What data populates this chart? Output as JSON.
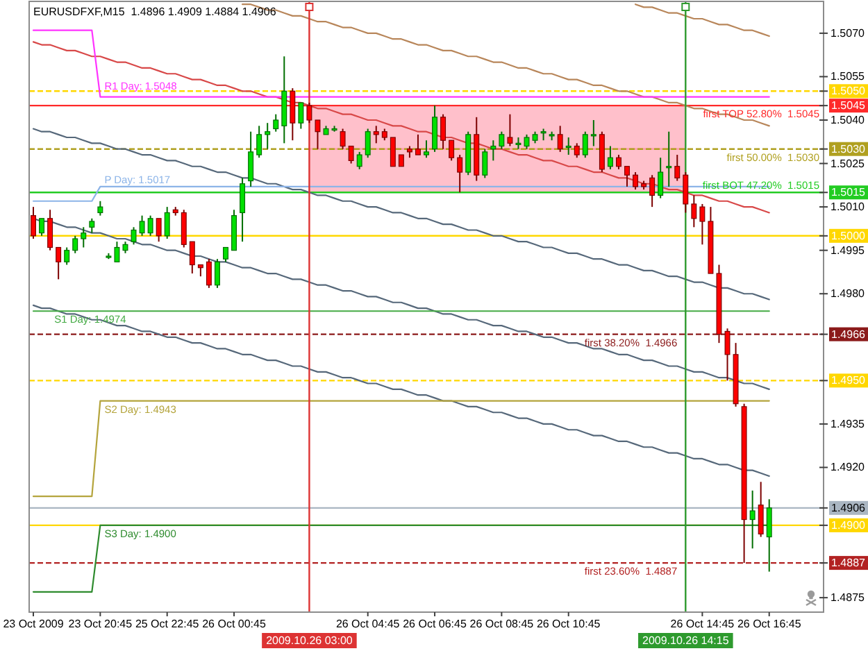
{
  "chart_data": {
    "type": "candlestick",
    "title": "EURUSDFXF,M15  1.4896 1.4909 1.4884 1.4906",
    "categories": [
      "23 Oct 2009",
      null,
      null,
      null,
      null,
      null,
      null,
      null,
      "23 Oct 20:45",
      null,
      null,
      null,
      null,
      null,
      null,
      null,
      "25 Oct 22:45",
      null,
      null,
      null,
      null,
      null,
      null,
      null,
      "26 Oct 00:45",
      null,
      null,
      null,
      null,
      null,
      null,
      null,
      null,
      "2009.10.26 03:00",
      null,
      null,
      null,
      null,
      null,
      null,
      "26 Oct 04:45",
      null,
      null,
      null,
      null,
      null,
      null,
      null,
      "26 Oct 06:45",
      null,
      null,
      null,
      null,
      null,
      null,
      null,
      "26 Oct 08:45",
      null,
      null,
      null,
      null,
      null,
      null,
      null,
      "26 Oct 10:45",
      null,
      null,
      null,
      null,
      null,
      null,
      null,
      null,
      null,
      null,
      null,
      null,
      null,
      "2009.10.26 14:15",
      null,
      "26 Oct 14:45",
      null,
      null,
      null,
      null,
      null,
      null,
      null,
      "26 Oct 16:45"
    ],
    "ohlc": [
      [
        1.5007,
        1.501,
        1.4999,
        1.5
      ],
      [
        1.5001,
        1.5006,
        1.5,
        1.5006
      ],
      [
        1.5006,
        1.5009,
        1.4995,
        1.4996
      ],
      [
        1.4996,
        1.4996,
        1.4985,
        1.4991
      ],
      [
        1.4991,
        1.4996,
        1.499,
        1.4995
      ],
      [
        1.4995,
        1.5,
        1.4994,
        1.4999
      ],
      [
        1.4999,
        1.5003,
        1.4996,
        1.5001
      ],
      [
        1.5003,
        1.5006,
        1.5001,
        1.5005
      ],
      [
        1.5008,
        1.5012,
        1.5007,
        1.501
      ],
      [
        1.4993,
        1.4994,
        1.4992,
        1.4993
      ],
      [
        1.4991,
        1.4998,
        1.4991,
        1.4996
      ],
      [
        1.4995,
        1.4998,
        1.4994,
        1.4997
      ],
      [
        1.4998,
        1.5003,
        1.4997,
        1.5002
      ],
      [
        1.5001,
        1.5007,
        1.5,
        1.5005
      ],
      [
        1.5001,
        1.5007,
        1.5,
        1.5006
      ],
      [
        1.5006,
        1.5006,
        1.4998,
        1.5
      ],
      [
        1.5,
        1.501,
        1.4999,
        1.5008
      ],
      [
        1.5009,
        1.501,
        1.5007,
        1.5008
      ],
      [
        1.5008,
        1.5009,
        1.4996,
        1.4997
      ],
      [
        1.4998,
        1.4998,
        1.4987,
        1.499
      ],
      [
        1.499,
        1.499,
        1.4986,
        1.4989
      ],
      [
        1.4991,
        1.4992,
        1.4982,
        1.4983
      ],
      [
        1.4983,
        1.4992,
        1.4982,
        1.4991
      ],
      [
        1.4992,
        1.4996,
        1.4991,
        1.4996
      ],
      [
        1.4995,
        1.5009,
        1.4995,
        1.5007
      ],
      [
        1.5008,
        1.502,
        1.4998,
        1.5018
      ],
      [
        1.5019,
        1.5036,
        1.5017,
        1.5029
      ],
      [
        1.5028,
        1.5038,
        1.5027,
        1.5035
      ],
      [
        1.5035,
        1.5039,
        1.503,
        1.5036
      ],
      [
        1.5037,
        1.5042,
        1.5036,
        1.504
      ],
      [
        1.5038,
        1.5062,
        1.5032,
        1.505
      ],
      [
        1.505,
        1.5051,
        1.5033,
        1.5039
      ],
      [
        1.5039,
        1.5046,
        1.5037,
        1.5046
      ],
      [
        1.5045,
        1.5046,
        1.5039,
        1.504
      ],
      [
        1.504,
        1.504,
        1.503,
        1.5036
      ],
      [
        1.5035,
        1.5038,
        1.5035,
        1.5037
      ],
      [
        1.5037,
        1.5038,
        1.5036,
        1.5037
      ],
      [
        1.5036,
        1.5037,
        1.503,
        1.5031
      ],
      [
        1.5031,
        1.5031,
        1.5025,
        1.5026
      ],
      [
        1.5024,
        1.5029,
        1.5023,
        1.5028
      ],
      [
        1.5028,
        1.5037,
        1.5027,
        1.5036
      ],
      [
        1.5036,
        1.5038,
        1.5032,
        1.5035
      ],
      [
        1.5036,
        1.5037,
        1.5033,
        1.5034
      ],
      [
        1.5034,
        1.5034,
        1.5024,
        1.5024
      ],
      [
        1.5028,
        1.5028,
        1.5024,
        1.5024
      ],
      [
        1.503,
        1.5031,
        1.5027,
        1.5029
      ],
      [
        1.503,
        1.5035,
        1.5028,
        1.5028
      ],
      [
        1.5028,
        1.5033,
        1.5027,
        1.5029
      ],
      [
        1.503,
        1.5045,
        1.5029,
        1.5041
      ],
      [
        1.5041,
        1.5042,
        1.503,
        1.5033
      ],
      [
        1.5033,
        1.5033,
        1.5026,
        1.5027
      ],
      [
        1.5027,
        1.5028,
        1.5015,
        1.5022
      ],
      [
        1.5022,
        1.5036,
        1.5021,
        1.5035
      ],
      [
        1.5035,
        1.5041,
        1.5019,
        1.5021
      ],
      [
        1.5021,
        1.503,
        1.502,
        1.5029
      ],
      [
        1.503,
        1.5033,
        1.5026,
        1.5031
      ],
      [
        1.5031,
        1.5036,
        1.503,
        1.5035
      ],
      [
        1.5034,
        1.5042,
        1.5031,
        1.5032
      ],
      [
        1.5032,
        1.5034,
        1.503,
        1.5032
      ],
      [
        1.5031,
        1.5035,
        1.503,
        1.5034
      ],
      [
        1.5033,
        1.5036,
        1.5032,
        1.5035
      ],
      [
        1.5036,
        1.5037,
        1.5033,
        1.5036
      ],
      [
        1.5035,
        1.5036,
        1.5033,
        1.5035
      ],
      [
        1.5035,
        1.5038,
        1.5029,
        1.503
      ],
      [
        1.5031,
        1.5034,
        1.5028,
        1.5031
      ],
      [
        1.5031,
        1.5032,
        1.5027,
        1.5028
      ],
      [
        1.5028,
        1.5036,
        1.5027,
        1.5035
      ],
      [
        1.5035,
        1.504,
        1.5031,
        1.5035
      ],
      [
        1.5035,
        1.5036,
        1.5022,
        1.5023
      ],
      [
        1.5024,
        1.5031,
        1.5023,
        1.5027
      ],
      [
        1.5027,
        1.5028,
        1.5023,
        1.5024
      ],
      [
        1.5024,
        1.5024,
        1.5017,
        1.5021
      ],
      [
        1.5021,
        1.5022,
        1.5016,
        1.5017
      ],
      [
        1.5018,
        1.5019,
        1.5016,
        1.5017
      ],
      [
        1.502,
        1.5021,
        1.501,
        1.5014
      ],
      [
        1.5014,
        1.5027,
        1.5013,
        1.5022
      ],
      [
        1.5024,
        1.5036,
        1.5017,
        1.5024
      ],
      [
        1.5024,
        1.5028,
        1.5019,
        1.502
      ],
      [
        1.5021,
        1.5022,
        1.5008,
        1.5011
      ],
      [
        1.5011,
        1.5014,
        1.5003,
        1.5006
      ],
      [
        1.501,
        1.5011,
        1.4997,
        1.5005
      ],
      [
        1.5005,
        1.501,
        1.4987,
        1.4987
      ],
      [
        1.4987,
        1.499,
        1.4963,
        1.4966
      ],
      [
        1.4967,
        1.4968,
        1.495,
        1.4959
      ],
      [
        1.4959,
        1.4963,
        1.4941,
        1.4942
      ],
      [
        1.4941,
        1.4942,
        1.4887,
        1.4902
      ],
      [
        1.4902,
        1.4912,
        1.4892,
        1.4905
      ],
      [
        1.4907,
        1.4915,
        1.4896,
        1.4897
      ],
      [
        1.4896,
        1.4909,
        1.4884,
        1.4906
      ]
    ],
    "colors": [
      "#ff0000",
      "#00e000",
      "#ff0000",
      "#ff0000",
      "#00e000",
      "#00e000",
      "#00e000",
      "#00e000",
      "#00e000",
      "#00e000",
      "#00e000",
      "#00e000",
      "#00e000",
      "#00e000",
      "#00e000",
      "#ff0000",
      "#00e000",
      "#ff0000",
      "#ff0000",
      "#ff0000",
      "#ff0000",
      "#ff0000",
      "#00e000",
      "#00e000",
      "#00e000",
      "#00e000",
      "#00e000",
      "#00e000",
      "#00e000",
      "#00e000",
      "#00e000",
      "#ff0000",
      "#00e000",
      "#ff0000",
      "#ff0000",
      "#00e000",
      "#00e000",
      "#ff0000",
      "#ff0000",
      "#00e000",
      "#00e000",
      "#ff0000",
      "#ff0000",
      "#ff0000",
      "#ff0000",
      "#ff0000",
      "#ff0000",
      "#00e000",
      "#00e000",
      "#ff0000",
      "#ff0000",
      "#ff0000",
      "#00e000",
      "#ff0000",
      "#00e000",
      "#00e000",
      "#00e000",
      "#ff0000",
      "#00e000",
      "#00e000",
      "#00e000",
      "#00e000",
      "#00e000",
      "#ff0000",
      "#00e000",
      "#ff0000",
      "#00e000",
      "#00e000",
      "#ff0000",
      "#00e000",
      "#ff0000",
      "#ff0000",
      "#ff0000",
      "#ff0000",
      "#ff0000",
      "#00e000",
      "#00e000",
      "#ff0000",
      "#ff0000",
      "#ff0000",
      "#ff0000",
      "#ff0000",
      "#ff0000",
      "#ff0000",
      "#ff0000",
      "#ff0000",
      "#00e000",
      "#ff0000",
      "#00e000"
    ],
    "ylim": [
      1.487,
      1.5081
    ],
    "yticks": [
      {
        "value": 1.507,
        "label": "1.5070"
      },
      1.5055,
      {
        "value": 1.505,
        "label": "1.5050"
      },
      1.5045,
      {
        "value": 1.504,
        "label": "1.5040"
      },
      {
        "value": 1.503,
        "label": "1.5030"
      },
      1.5025,
      1.5015,
      {
        "value": 1.501,
        "label": "1.5010"
      },
      {
        "value": 1.5,
        "label": "1.5000"
      },
      1.4995,
      {
        "value": 1.498,
        "label": "1.4980"
      },
      1.4966,
      {
        "value": 1.495,
        "label": "1.4950"
      },
      1.4935,
      {
        "value": 1.492,
        "label": "1.4920"
      },
      1.4906,
      {
        "value": 1.49,
        "label": "1.4900"
      },
      1.4887,
      1.4875
    ],
    "series": [
      {
        "type": "line",
        "color": "#ff96a8",
        "values": [
          null,
          null,
          null,
          null,
          null,
          null,
          null,
          null,
          null,
          null,
          null,
          null,
          null,
          null,
          null,
          null,
          null,
          null,
          null,
          null,
          null,
          null,
          null,
          null,
          null,
          null,
          null,
          null,
          null,
          null,
          null,
          null,
          null,
          1.503,
          1.503,
          1.503,
          1.503,
          1.503,
          1.503,
          1.503,
          1.503,
          1.503,
          1.503,
          1.503,
          1.503,
          1.503,
          1.503,
          1.503,
          1.503,
          1.503,
          1.503,
          1.503,
          1.503,
          1.503,
          1.503,
          1.503,
          1.503,
          1.503,
          1.503,
          1.503,
          1.503,
          1.503,
          1.503,
          1.503,
          1.503,
          1.503,
          1.503,
          1.503,
          1.503,
          1.503,
          1.503,
          1.503,
          1.503,
          1.503,
          1.503,
          1.503,
          1.503,
          1.503,
          1.503,
          null,
          null,
          null,
          null,
          null,
          null,
          null,
          null,
          null,
          null
        ],
        "upper": [
          null,
          null,
          null,
          null,
          null,
          null,
          null,
          null,
          null,
          null,
          null,
          null,
          null,
          null,
          null,
          null,
          null,
          null,
          null,
          null,
          null,
          null,
          null,
          null,
          null,
          null,
          null,
          null,
          null,
          null,
          null,
          null,
          null,
          1.5045,
          1.5045,
          1.5045,
          1.5045,
          1.5045,
          1.5045,
          1.5045,
          1.5045,
          1.5045,
          1.5045,
          1.5045,
          1.5045,
          1.5045,
          1.5045,
          1.5045,
          1.5045,
          1.5045,
          1.5045,
          1.5045,
          1.5045,
          1.5045,
          1.5045,
          1.5045,
          1.5045,
          1.5045,
          1.5045,
          1.5045,
          1.5045,
          1.5045,
          1.5045,
          1.5045,
          1.5045,
          1.5045,
          1.5045,
          1.5045,
          1.5045,
          1.5045,
          1.5045,
          1.5045,
          1.5045,
          1.5045,
          1.5045,
          1.5045,
          1.5045,
          1.5045,
          1.5045,
          null,
          null,
          null,
          null,
          null,
          null,
          null,
          null,
          null,
          null
        ],
        "lower": [
          null,
          null,
          null,
          null,
          null,
          null,
          null,
          null,
          null,
          null,
          null,
          null,
          null,
          null,
          null,
          null,
          null,
          null,
          null,
          null,
          null,
          null,
          null,
          null,
          null,
          null,
          null,
          null,
          null,
          null,
          null,
          null,
          null,
          1.5015,
          1.5015,
          1.5015,
          1.5015,
          1.5015,
          1.5015,
          1.5015,
          1.5015,
          1.5015,
          1.5015,
          1.5015,
          1.5015,
          1.5015,
          1.5015,
          1.5015,
          1.5015,
          1.5015,
          1.5015,
          1.5015,
          1.5015,
          1.5015,
          1.5015,
          1.5015,
          1.5015,
          1.5015,
          1.5015,
          1.5015,
          1.5015,
          1.5015,
          1.5015,
          1.5015,
          1.5015,
          1.5015,
          1.5015,
          1.5015,
          1.5015,
          1.5015,
          1.5015,
          1.5015,
          1.5015,
          1.5015,
          1.5015,
          1.5015,
          1.5015,
          1.5015,
          1.5015,
          null,
          null,
          null,
          null,
          null,
          null,
          null,
          null,
          null,
          null
        ]
      },
      {
        "type": "line",
        "color": "#b8865a",
        "values": [
          null,
          null,
          null,
          null,
          null,
          null,
          null,
          null,
          null,
          null,
          null,
          null,
          null,
          null,
          null,
          null,
          null,
          null,
          null,
          null,
          null,
          null,
          null,
          null,
          null,
          1.508,
          1.508,
          1.5079,
          1.5078,
          1.5078,
          1.5077,
          1.5076,
          1.5076,
          1.5075,
          1.5074,
          1.5074,
          1.5073,
          1.5072,
          1.5072,
          1.5071,
          1.507,
          1.507,
          1.5069,
          1.5068,
          1.5068,
          1.5067,
          1.5066,
          1.5066,
          1.5065,
          1.5064,
          1.5064,
          1.5063,
          1.5062,
          1.5062,
          1.5061,
          1.506,
          1.506,
          1.5059,
          1.5058,
          1.5058,
          1.5057,
          1.5056,
          1.5056,
          1.5055,
          1.5054,
          1.5054,
          1.5053,
          1.5052,
          1.5052,
          1.5051,
          1.505,
          1.505,
          1.5049,
          1.5048,
          1.5048,
          1.5047,
          1.5046,
          1.5046,
          1.5045,
          1.5044,
          1.5044,
          1.5043,
          1.5042,
          1.5042,
          1.5041,
          1.504,
          1.504,
          1.5039,
          1.5038
        ]
      },
      {
        "type": "line",
        "color": "#b8865a",
        "values": [
          null,
          null,
          null,
          null,
          null,
          null,
          null,
          null,
          null,
          null,
          null,
          null,
          null,
          null,
          null,
          null,
          null,
          null,
          null,
          null,
          null,
          null,
          null,
          null,
          null,
          null,
          null,
          null,
          null,
          null,
          null,
          null,
          null,
          null,
          null,
          null,
          null,
          null,
          null,
          null,
          null,
          null,
          null,
          null,
          null,
          null,
          null,
          null,
          null,
          null,
          null,
          null,
          null,
          null,
          null,
          null,
          null,
          null,
          null,
          null,
          null,
          null,
          null,
          null,
          null,
          null,
          null,
          null,
          null,
          null,
          null,
          null,
          1.508,
          1.5079,
          1.5079,
          1.5078,
          1.5077,
          1.5077,
          1.5076,
          1.5075,
          1.5075,
          1.5074,
          1.5073,
          1.5073,
          1.5072,
          1.5071,
          1.5071,
          1.507,
          1.5069
        ]
      },
      {
        "type": "line",
        "color": "#d84848",
        "values": [
          1.5067,
          1.5066,
          1.5066,
          1.5065,
          1.5064,
          1.5064,
          1.5063,
          1.5062,
          1.5062,
          1.5061,
          1.506,
          1.506,
          1.5059,
          1.5058,
          1.5058,
          1.5057,
          1.5056,
          1.5056,
          1.5055,
          1.5054,
          1.5054,
          1.5053,
          1.5052,
          1.5052,
          1.5051,
          1.505,
          1.505,
          1.5049,
          1.5048,
          1.5048,
          1.5047,
          1.5046,
          1.5046,
          1.5045,
          1.5044,
          1.5044,
          1.5043,
          1.5042,
          1.5042,
          1.5041,
          1.504,
          1.504,
          1.5039,
          1.5038,
          1.5038,
          1.5037,
          1.5036,
          1.5036,
          1.5035,
          1.5034,
          1.5034,
          1.5033,
          1.5032,
          1.5032,
          1.5031,
          1.503,
          1.503,
          1.5029,
          1.5028,
          1.5028,
          1.5027,
          1.5026,
          1.5026,
          1.5025,
          1.5024,
          1.5024,
          1.5023,
          1.5022,
          1.5022,
          1.5021,
          1.502,
          1.502,
          1.5019,
          1.5018,
          1.5018,
          1.5017,
          1.5016,
          1.5016,
          1.5015,
          1.5014,
          1.5014,
          1.5013,
          1.5012,
          1.5012,
          1.5011,
          1.501,
          1.501,
          1.5009,
          1.5008
        ]
      },
      {
        "type": "line",
        "color": "#56687a",
        "values": [
          1.5037,
          1.5036,
          1.5036,
          1.5035,
          1.5034,
          1.5034,
          1.5033,
          1.5032,
          1.5032,
          1.5031,
          1.503,
          1.503,
          1.5029,
          1.5028,
          1.5028,
          1.5027,
          1.5026,
          1.5026,
          1.5025,
          1.5024,
          1.5024,
          1.5023,
          1.5022,
          1.5022,
          1.5021,
          1.502,
          1.502,
          1.5019,
          1.5018,
          1.5018,
          1.5017,
          1.5016,
          1.5016,
          1.5015,
          1.5014,
          1.5014,
          1.5013,
          1.5012,
          1.5012,
          1.5011,
          1.501,
          1.501,
          1.5009,
          1.5008,
          1.5008,
          1.5007,
          1.5006,
          1.5006,
          1.5005,
          1.5004,
          1.5004,
          1.5003,
          1.5002,
          1.5002,
          1.5001,
          1.5,
          1.5,
          1.4999,
          1.4998,
          1.4998,
          1.4997,
          1.4996,
          1.4996,
          1.4995,
          1.4994,
          1.4994,
          1.4993,
          1.4992,
          1.4992,
          1.4991,
          1.499,
          1.499,
          1.4989,
          1.4988,
          1.4988,
          1.4987,
          1.4986,
          1.4986,
          1.4985,
          1.4984,
          1.4984,
          1.4983,
          1.4982,
          1.4982,
          1.4981,
          1.498,
          1.498,
          1.4979,
          1.4978
        ]
      },
      {
        "type": "line",
        "color": "#56687a",
        "values": [
          1.5006,
          1.5005,
          1.5005,
          1.5004,
          1.5003,
          1.5003,
          1.5002,
          1.5001,
          1.5001,
          1.5,
          1.4999,
          1.4999,
          1.4998,
          1.4997,
          1.4997,
          1.4996,
          1.4995,
          1.4995,
          1.4994,
          1.4993,
          1.4993,
          1.4992,
          1.4991,
          1.4991,
          1.499,
          1.4989,
          1.4989,
          1.4988,
          1.4987,
          1.4987,
          1.4986,
          1.4985,
          1.4985,
          1.4984,
          1.4983,
          1.4983,
          1.4982,
          1.4981,
          1.4981,
          1.498,
          1.4979,
          1.4979,
          1.4978,
          1.4977,
          1.4977,
          1.4976,
          1.4975,
          1.4975,
          1.4974,
          1.4973,
          1.4973,
          1.4972,
          1.4971,
          1.4971,
          1.497,
          1.4969,
          1.4969,
          1.4968,
          1.4967,
          1.4967,
          1.4966,
          1.4965,
          1.4965,
          1.4964,
          1.4963,
          1.4963,
          1.4962,
          1.4961,
          1.4961,
          1.496,
          1.4959,
          1.4959,
          1.4958,
          1.4957,
          1.4957,
          1.4956,
          1.4955,
          1.4955,
          1.4954,
          1.4953,
          1.4953,
          1.4952,
          1.4951,
          1.4951,
          1.495,
          1.4949,
          1.4949,
          1.4948,
          1.4947
        ]
      },
      {
        "type": "line",
        "color": "#56687a",
        "values": [
          1.4976,
          1.4975,
          1.4975,
          1.4974,
          1.4973,
          1.4973,
          1.4972,
          1.4971,
          1.4971,
          1.497,
          1.4969,
          1.4969,
          1.4968,
          1.4967,
          1.4967,
          1.4966,
          1.4965,
          1.4965,
          1.4964,
          1.4963,
          1.4963,
          1.4962,
          1.4961,
          1.4961,
          1.496,
          1.4959,
          1.4959,
          1.4958,
          1.4957,
          1.4957,
          1.4956,
          1.4955,
          1.4955,
          1.4954,
          1.4953,
          1.4953,
          1.4952,
          1.4951,
          1.4951,
          1.495,
          1.4949,
          1.4949,
          1.4948,
          1.4947,
          1.4947,
          1.4946,
          1.4945,
          1.4945,
          1.4944,
          1.4943,
          1.4943,
          1.4942,
          1.4941,
          1.4941,
          1.494,
          1.4939,
          1.4939,
          1.4938,
          1.4937,
          1.4937,
          1.4936,
          1.4935,
          1.4935,
          1.4934,
          1.4933,
          1.4933,
          1.4932,
          1.4931,
          1.4931,
          1.493,
          1.4929,
          1.4929,
          1.4928,
          1.4927,
          1.4927,
          1.4926,
          1.4925,
          1.4925,
          1.4924,
          1.4923,
          1.4923,
          1.4922,
          1.4921,
          1.4921,
          1.492,
          1.4919,
          1.4919,
          1.4918,
          1.4917
        ]
      },
      {
        "type": "line",
        "name": "R1 Day: 1.5048",
        "color": "#ff33ff",
        "values": [
          1.5071,
          1.5071,
          1.5071,
          1.5071,
          1.5071,
          1.5071,
          1.5071,
          1.5071,
          1.5048,
          1.5048,
          1.5048,
          1.5048,
          1.5048,
          1.5048,
          1.5048,
          1.5048,
          1.5048,
          1.5048,
          1.5048,
          1.5048,
          1.5048,
          1.5048,
          1.5048,
          1.5048,
          1.5048,
          1.5048,
          1.5048,
          1.5048,
          1.5048,
          1.5048,
          1.5048,
          1.5048,
          1.5048,
          1.5048,
          1.5048,
          1.5048,
          1.5048,
          1.5048,
          1.5048,
          1.5048,
          1.5048,
          1.5048,
          1.5048,
          1.5048,
          1.5048,
          1.5048,
          1.5048,
          1.5048,
          1.5048,
          1.5048,
          1.5048,
          1.5048,
          1.5048,
          1.5048,
          1.5048,
          1.5048,
          1.5048,
          1.5048,
          1.5048,
          1.5048,
          1.5048,
          1.5048,
          1.5048,
          1.5048,
          1.5048,
          1.5048,
          1.5048,
          1.5048,
          1.5048,
          1.5048,
          1.5048,
          1.5048,
          1.5048,
          1.5048,
          1.5048,
          1.5048,
          1.5048,
          1.5048,
          1.5048,
          1.5048,
          1.5048,
          1.5048,
          1.5048,
          1.5048,
          1.5048,
          1.5048,
          1.5048,
          1.5048,
          1.5048
        ]
      },
      {
        "type": "line",
        "name": "P Day: 1.5017",
        "color": "#8cb4e8",
        "values": [
          1.5012,
          1.5012,
          1.5012,
          1.5012,
          1.5012,
          1.5012,
          1.5012,
          1.5012,
          1.5017,
          1.5017,
          1.5017,
          1.5017,
          1.5017,
          1.5017,
          1.5017,
          1.5017,
          1.5017,
          1.5017,
          1.5017,
          1.5017,
          1.5017,
          1.5017,
          1.5017,
          1.5017,
          1.5017,
          1.5017,
          1.5017,
          1.5017,
          1.5017,
          1.5017,
          1.5017,
          1.5017,
          1.5017,
          1.5017,
          1.5017,
          1.5017,
          1.5017,
          1.5017,
          1.5017,
          1.5017,
          1.5017,
          1.5017,
          1.5017,
          1.5017,
          1.5017,
          1.5017,
          1.5017,
          1.5017,
          1.5017,
          1.5017,
          1.5017,
          1.5017,
          1.5017,
          1.5017,
          1.5017,
          1.5017,
          1.5017,
          1.5017,
          1.5017,
          1.5017,
          1.5017,
          1.5017,
          1.5017,
          1.5017,
          1.5017,
          1.5017,
          1.5017,
          1.5017,
          1.5017,
          1.5017,
          1.5017,
          1.5017,
          1.5017,
          1.5017,
          1.5017,
          1.5017,
          1.5017,
          1.5017,
          1.5017,
          1.5017,
          1.5017,
          1.5017,
          1.5017,
          1.5017,
          1.5017,
          1.5017,
          1.5017,
          1.5017,
          1.5017
        ]
      },
      {
        "type": "line",
        "name": "S1 Day: 1.4974",
        "color": "#44aa44",
        "values": [
          1.4974,
          1.4974,
          1.4974,
          1.4974,
          1.4974,
          1.4974,
          1.4974,
          1.4974,
          1.4974,
          1.4974,
          1.4974,
          1.4974,
          1.4974,
          1.4974,
          1.4974,
          1.4974,
          1.4974,
          1.4974,
          1.4974,
          1.4974,
          1.4974,
          1.4974,
          1.4974,
          1.4974,
          1.4974,
          1.4974,
          1.4974,
          1.4974,
          1.4974,
          1.4974,
          1.4974,
          1.4974,
          1.4974,
          1.4974,
          1.4974,
          1.4974,
          1.4974,
          1.4974,
          1.4974,
          1.4974,
          1.4974,
          1.4974,
          1.4974,
          1.4974,
          1.4974,
          1.4974,
          1.4974,
          1.4974,
          1.4974,
          1.4974,
          1.4974,
          1.4974,
          1.4974,
          1.4974,
          1.4974,
          1.4974,
          1.4974,
          1.4974,
          1.4974,
          1.4974,
          1.4974,
          1.4974,
          1.4974,
          1.4974,
          1.4974,
          1.4974,
          1.4974,
          1.4974,
          1.4974,
          1.4974,
          1.4974,
          1.4974,
          1.4974,
          1.4974,
          1.4974,
          1.4974,
          1.4974,
          1.4974,
          1.4974,
          1.4974,
          1.4974,
          1.4974,
          1.4974,
          1.4974,
          1.4974,
          1.4974,
          1.4974,
          1.4974,
          1.4974
        ]
      },
      {
        "type": "line",
        "name": "S2 Day: 1.4943",
        "color": "#b4a43c",
        "values": [
          1.491,
          1.491,
          1.491,
          1.491,
          1.491,
          1.491,
          1.491,
          1.491,
          1.4943,
          1.4943,
          1.4943,
          1.4943,
          1.4943,
          1.4943,
          1.4943,
          1.4943,
          1.4943,
          1.4943,
          1.4943,
          1.4943,
          1.4943,
          1.4943,
          1.4943,
          1.4943,
          1.4943,
          1.4943,
          1.4943,
          1.4943,
          1.4943,
          1.4943,
          1.4943,
          1.4943,
          1.4943,
          1.4943,
          1.4943,
          1.4943,
          1.4943,
          1.4943,
          1.4943,
          1.4943,
          1.4943,
          1.4943,
          1.4943,
          1.4943,
          1.4943,
          1.4943,
          1.4943,
          1.4943,
          1.4943,
          1.4943,
          1.4943,
          1.4943,
          1.4943,
          1.4943,
          1.4943,
          1.4943,
          1.4943,
          1.4943,
          1.4943,
          1.4943,
          1.4943,
          1.4943,
          1.4943,
          1.4943,
          1.4943,
          1.4943,
          1.4943,
          1.4943,
          1.4943,
          1.4943,
          1.4943,
          1.4943,
          1.4943,
          1.4943,
          1.4943,
          1.4943,
          1.4943,
          1.4943,
          1.4943,
          1.4943,
          1.4943,
          1.4943,
          1.4943,
          1.4943,
          1.4943,
          1.4943,
          1.4943,
          1.4943,
          1.4943
        ]
      },
      {
        "type": "line",
        "name": "S3 Day: 1.4900",
        "color": "#2e8b2e",
        "values": [
          1.4877,
          1.4877,
          1.4877,
          1.4877,
          1.4877,
          1.4877,
          1.4877,
          1.4877,
          1.49,
          1.49,
          1.49,
          1.49,
          1.49,
          1.49,
          1.49,
          1.49,
          1.49,
          1.49,
          1.49,
          1.49,
          1.49,
          1.49,
          1.49,
          1.49,
          1.49,
          1.49,
          1.49,
          1.49,
          1.49,
          1.49,
          1.49,
          1.49,
          1.49,
          1.49,
          1.49,
          1.49,
          1.49,
          1.49,
          1.49,
          1.49,
          1.49,
          1.49,
          1.49,
          1.49,
          1.49,
          1.49,
          1.49,
          1.49,
          1.49,
          1.49,
          1.49,
          1.49,
          1.49,
          1.49,
          1.49,
          1.49,
          1.49,
          1.49,
          1.49,
          1.49,
          1.49,
          1.49,
          1.49,
          1.49,
          1.49,
          1.49,
          1.49,
          1.49,
          1.49,
          1.49,
          1.49,
          1.49,
          1.49,
          1.49,
          1.49,
          1.49,
          1.49,
          1.49,
          1.49,
          1.49,
          1.49,
          1.49,
          1.49,
          1.49,
          1.49,
          1.49,
          1.49,
          1.49,
          1.49
        ]
      }
    ],
    "ref_lines": [
      {
        "axis": "y",
        "value": 1.505,
        "color": "#ffd700",
        "line_style": "dashed"
      },
      {
        "axis": "y",
        "value": 1.5045,
        "label": "first TOP 52.80%  1.5045",
        "color": "#ff2a2a"
      },
      {
        "axis": "y",
        "value": 1.503,
        "label": "first 50.00%  1.5030",
        "color": "#b0a020",
        "line_style": "dashed"
      },
      {
        "axis": "y",
        "value": 1.5015,
        "label": "first BOT 47.20%  1.5015",
        "color": "#22cc22"
      },
      {
        "axis": "y",
        "value": 1.5,
        "color": "#ffd700"
      },
      {
        "axis": "y",
        "value": 1.4966,
        "label": "first 38.20%  1.4966",
        "color": "#8b1a1a",
        "line_style": "dashed"
      },
      {
        "axis": "y",
        "value": 1.495,
        "color": "#ffd700",
        "line_style": "dashed"
      },
      {
        "axis": "y",
        "value": 1.4906,
        "color": "#aab6c2"
      },
      {
        "axis": "y",
        "value": 1.49,
        "color": "#ffd700"
      },
      {
        "axis": "y",
        "value": 1.4887,
        "label": "first 23.60%  1.4887",
        "color": "#b22222",
        "line_style": "dashed"
      },
      {
        "axis": "x",
        "value": "2009.10.26 03:00",
        "color": "#dd3333"
      },
      {
        "axis": "x",
        "value": "2009.10.26 14:15",
        "color": "#2e9a2e"
      }
    ]
  }
}
